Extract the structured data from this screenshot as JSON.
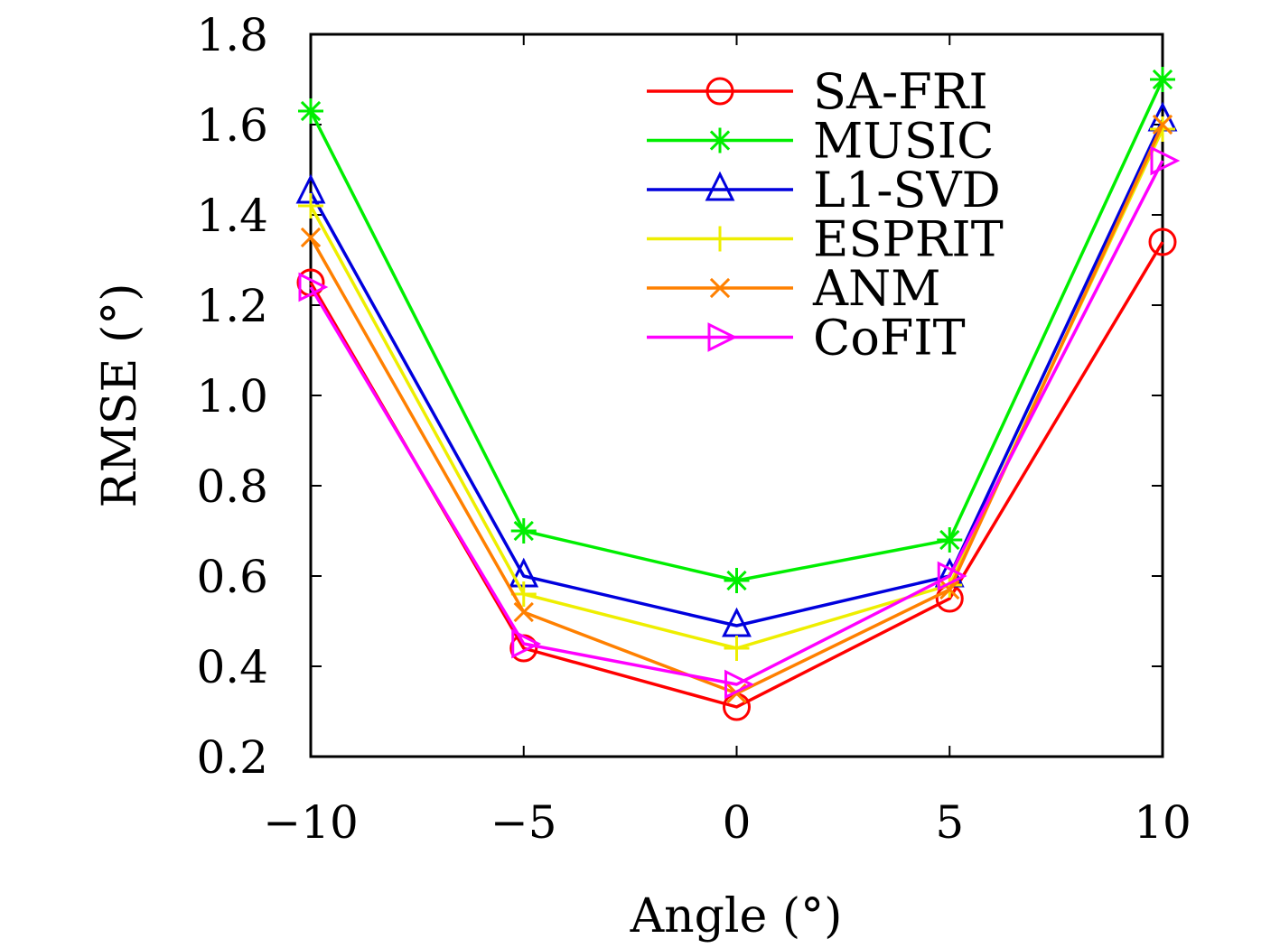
{
  "chart_data": {
    "type": "line",
    "title": "",
    "xlabel": "Angle (°)",
    "ylabel": "RMSE (°)",
    "x": [
      -10,
      -5,
      0,
      5,
      10
    ],
    "x_tick_labels": [
      "−10",
      "−5",
      "0",
      "5",
      "10"
    ],
    "y_ticks": [
      0.2,
      0.4,
      0.6,
      0.8,
      1.0,
      1.2,
      1.4,
      1.6,
      1.8
    ],
    "y_tick_labels": [
      "0.2",
      "0.4",
      "0.6",
      "0.8",
      "1.0",
      "1.2",
      "1.4",
      "1.6",
      "1.8"
    ],
    "xlim": [
      -10,
      10
    ],
    "ylim": [
      0.2,
      1.8
    ],
    "grid": false,
    "legend_position": "top-right",
    "series": [
      {
        "name": "SA-FRI",
        "color": "#ff0000",
        "marker": "circle",
        "values": [
          1.25,
          0.44,
          0.31,
          0.55,
          1.34
        ]
      },
      {
        "name": "MUSIC",
        "color": "#00ee00",
        "marker": "asterisk",
        "values": [
          1.63,
          0.7,
          0.59,
          0.68,
          1.7
        ]
      },
      {
        "name": "L1-SVD",
        "color": "#0000dd",
        "marker": "triangle",
        "values": [
          1.45,
          0.6,
          0.49,
          0.6,
          1.61
        ]
      },
      {
        "name": "ESPRIT",
        "color": "#eeee00",
        "marker": "plus",
        "values": [
          1.42,
          0.56,
          0.44,
          0.58,
          1.59
        ]
      },
      {
        "name": "ANM",
        "color": "#ff8000",
        "marker": "cross",
        "values": [
          1.35,
          0.52,
          0.34,
          0.57,
          1.6
        ]
      },
      {
        "name": "CoFIT",
        "color": "#ff00ff",
        "marker": "triangle-right",
        "values": [
          1.24,
          0.45,
          0.36,
          0.6,
          1.52
        ]
      }
    ]
  }
}
